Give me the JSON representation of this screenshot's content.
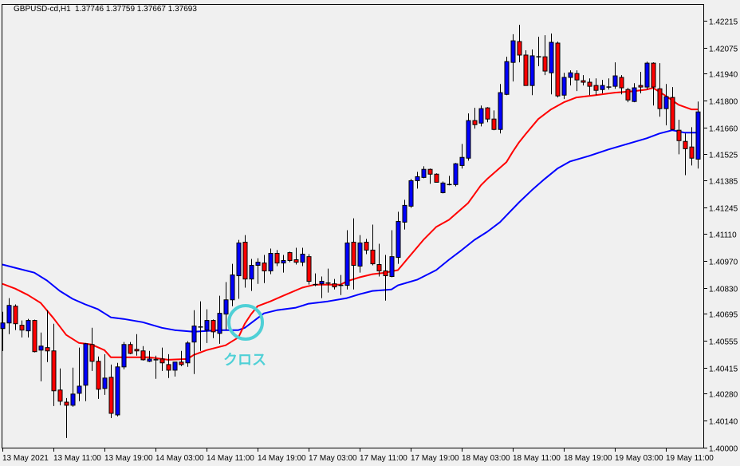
{
  "header": {
    "symbol": "GBPUSD-cd,H1",
    "quote": "1.37746 1.37759 1.37667 1.37693"
  },
  "colors": {
    "background": "#f0f0f0",
    "bull": "#0000ff",
    "bear": "#ff0000",
    "ma_fast": "#ff0000",
    "ma_slow": "#0000ff",
    "annotation": "#4fd0d6",
    "outline": "#000000"
  },
  "annotation": {
    "text": "クロス",
    "icon": "circle-highlight"
  },
  "chart_data": {
    "type": "candlestick",
    "title": "GBPUSD-cd,H1",
    "ylim": [
      1.4,
      1.42215
    ],
    "y_ticks": [
      "1.42215",
      "1.42075",
      "1.41940",
      "1.41800",
      "1.41660",
      "1.41525",
      "1.41385",
      "1.41245",
      "1.41110",
      "1.40970",
      "1.40830",
      "1.40695",
      "1.40555",
      "1.40415",
      "1.40280",
      "1.40140",
      "1.40000"
    ],
    "x_labels": [
      {
        "bar": 0,
        "text": "13 May 2021"
      },
      {
        "bar": 8,
        "text": "13 May 11:00"
      },
      {
        "bar": 16,
        "text": "13 May 19:00"
      },
      {
        "bar": 24,
        "text": "14 May 03:00"
      },
      {
        "bar": 32,
        "text": "14 May 11:00"
      },
      {
        "bar": 40,
        "text": "14 May 19:00"
      },
      {
        "bar": 48,
        "text": "17 May 03:00"
      },
      {
        "bar": 56,
        "text": "17 May 11:00"
      },
      {
        "bar": 64,
        "text": "17 May 19:00"
      },
      {
        "bar": 72,
        "text": "18 May 03:00"
      },
      {
        "bar": 80,
        "text": "18 May 11:00"
      },
      {
        "bar": 88,
        "text": "18 May 19:00"
      },
      {
        "bar": 96,
        "text": "19 May 03:00"
      },
      {
        "bar": 104,
        "text": "19 May 11:00"
      }
    ],
    "candles_ohlc": [
      [
        1.40618,
        1.40705,
        1.40502,
        1.40647
      ],
      [
        1.40647,
        1.40776,
        1.40589,
        1.40738
      ],
      [
        1.40734,
        1.40743,
        1.4061,
        1.40643
      ],
      [
        1.40635,
        1.4066,
        1.40572,
        1.4061
      ],
      [
        1.40606,
        1.40668,
        1.40572,
        1.4066
      ],
      [
        1.4066,
        1.40664,
        1.40494,
        1.40498
      ],
      [
        1.40506,
        1.40597,
        1.40344,
        1.40527
      ],
      [
        1.40519,
        1.40713,
        1.40444,
        1.40502
      ],
      [
        1.40502,
        1.40643,
        1.40216,
        1.40295
      ],
      [
        1.40299,
        1.40411,
        1.4022,
        1.40241
      ],
      [
        1.40236,
        1.40257,
        1.4005,
        1.4022
      ],
      [
        1.4022,
        1.40415,
        1.40212,
        1.40278
      ],
      [
        1.40282,
        1.40519,
        1.40241,
        1.40319
      ],
      [
        1.40324,
        1.40543,
        1.40241,
        1.40539
      ],
      [
        1.40535,
        1.40622,
        1.40398,
        1.40448
      ],
      [
        1.40448,
        1.40473,
        1.40253,
        1.40303
      ],
      [
        1.40307,
        1.40485,
        1.40274,
        1.40361
      ],
      [
        1.40365,
        1.40431,
        1.40153,
        1.40178
      ],
      [
        1.4017,
        1.4044,
        1.40162,
        1.40419
      ],
      [
        1.40419,
        1.40548,
        1.40407,
        1.40535
      ],
      [
        1.40535,
        1.40548,
        1.40485,
        1.40489
      ],
      [
        1.4051,
        1.40589,
        1.40477,
        1.40502
      ],
      [
        1.40502,
        1.40527,
        1.40452,
        1.40456
      ],
      [
        1.40448,
        1.40502,
        1.40444,
        1.4046
      ],
      [
        1.40456,
        1.40477,
        1.40357,
        1.40456
      ],
      [
        1.4046,
        1.40519,
        1.40398,
        1.4044
      ],
      [
        1.40431,
        1.40485,
        1.40361,
        1.40402
      ],
      [
        1.40402,
        1.40444,
        1.40369,
        1.40444
      ],
      [
        1.40444,
        1.40502,
        1.40423,
        1.40431
      ],
      [
        1.4044,
        1.40552,
        1.40419,
        1.40543
      ],
      [
        1.40548,
        1.40713,
        1.40382,
        1.40631
      ],
      [
        1.40626,
        1.40759,
        1.40502,
        1.40626
      ],
      [
        1.4061,
        1.40718,
        1.40543,
        1.4066
      ],
      [
        1.4066,
        1.40665,
        1.40568,
        1.40601
      ],
      [
        1.40593,
        1.40788,
        1.40539,
        1.40697
      ],
      [
        1.40693,
        1.40859,
        1.4061,
        1.40767
      ],
      [
        1.40767,
        1.40954,
        1.40734,
        1.40896
      ],
      [
        1.40892,
        1.41078,
        1.40772,
        1.41062
      ],
      [
        1.41066,
        1.41103,
        1.4083,
        1.40875
      ],
      [
        1.40875,
        1.40979,
        1.40813,
        1.40946
      ],
      [
        1.40946,
        1.40983,
        1.4085,
        1.40962
      ],
      [
        1.40958,
        1.41,
        1.40854,
        1.40917
      ],
      [
        1.40917,
        1.41033,
        1.409,
        1.41008
      ],
      [
        1.41008,
        1.41025,
        1.40942,
        1.40958
      ],
      [
        1.40958,
        1.41,
        1.40908,
        1.40971
      ],
      [
        1.41012,
        1.41017,
        1.40962,
        1.40971
      ],
      [
        1.40975,
        1.41037,
        1.4095,
        1.40962
      ],
      [
        1.40962,
        1.41037,
        1.40942,
        1.41004
      ],
      [
        1.40991,
        1.41004,
        1.40846,
        1.40863
      ],
      [
        1.40846,
        1.40904,
        1.40838,
        1.40846
      ],
      [
        1.4085,
        1.40888,
        1.40776,
        1.40863
      ],
      [
        1.40854,
        1.40929,
        1.40805,
        1.40854
      ],
      [
        1.4085,
        1.40875,
        1.40821,
        1.40834
      ],
      [
        1.40842,
        1.40896,
        1.40792,
        1.40838
      ],
      [
        1.40842,
        1.41128,
        1.40821,
        1.41062
      ],
      [
        1.41066,
        1.4119,
        1.40821,
        1.40946
      ],
      [
        1.40942,
        1.41103,
        1.40908,
        1.41062
      ],
      [
        1.41066,
        1.41083,
        1.41004,
        1.41025
      ],
      [
        1.41025,
        1.41157,
        1.40946,
        1.40954
      ],
      [
        1.4095,
        1.41058,
        1.40888,
        1.40917
      ],
      [
        1.40917,
        1.41,
        1.40763,
        1.40892
      ],
      [
        1.40888,
        1.41128,
        1.40884,
        1.40991
      ],
      [
        1.40987,
        1.41224,
        1.40954,
        1.41174
      ],
      [
        1.4117,
        1.41286,
        1.41132,
        1.41257
      ],
      [
        1.41253,
        1.41394,
        1.41244,
        1.41385
      ],
      [
        1.41385,
        1.41431,
        1.41344,
        1.41406
      ],
      [
        1.41402,
        1.4146,
        1.41398,
        1.41444
      ],
      [
        1.41444,
        1.41448,
        1.41369,
        1.41419
      ],
      [
        1.41419,
        1.41423,
        1.41377,
        1.41377
      ],
      [
        1.41323,
        1.41381,
        1.41319,
        1.41373
      ],
      [
        1.41365,
        1.4141,
        1.41361,
        1.41365
      ],
      [
        1.41365,
        1.41477,
        1.41356,
        1.41473
      ],
      [
        1.41464,
        1.41576,
        1.41448,
        1.41506
      ],
      [
        1.41502,
        1.41734,
        1.41489,
        1.41697
      ],
      [
        1.41697,
        1.41763,
        1.41655,
        1.41676
      ],
      [
        1.41684,
        1.41775,
        1.41667,
        1.41759
      ],
      [
        1.41763,
        1.41767,
        1.41688,
        1.41705
      ],
      [
        1.41705,
        1.4175,
        1.41647,
        1.41651
      ],
      [
        1.41651,
        1.41887,
        1.4163,
        1.41842
      ],
      [
        1.41833,
        1.42028,
        1.41829,
        1.42003
      ],
      [
        1.41999,
        1.42145,
        1.419,
        1.42111
      ],
      [
        1.42107,
        1.42194,
        1.41999,
        1.42037
      ],
      [
        1.42037,
        1.42062,
        1.41879,
        1.41879
      ],
      [
        1.41879,
        1.42066,
        1.41829,
        1.42033
      ],
      [
        1.42028,
        1.42132,
        1.41979,
        1.42028
      ],
      [
        1.42028,
        1.4214,
        1.41933,
        1.41954
      ],
      [
        1.41945,
        1.42149,
        1.41833,
        1.42103
      ],
      [
        1.42099,
        1.42107,
        1.41817,
        1.41825
      ],
      [
        1.41829,
        1.41945,
        1.41809,
        1.41921
      ],
      [
        1.41921,
        1.41958,
        1.41879,
        1.41945
      ],
      [
        1.41941,
        1.41958,
        1.4185,
        1.41908
      ],
      [
        1.41904,
        1.41933,
        1.41879,
        1.41896
      ],
      [
        1.41896,
        1.41916,
        1.41829,
        1.41875
      ],
      [
        1.41879,
        1.41916,
        1.41829,
        1.41854
      ],
      [
        1.41858,
        1.41908,
        1.41838,
        1.41879
      ],
      [
        1.41871,
        1.41916,
        1.41858,
        1.41871
      ],
      [
        1.41875,
        1.41999,
        1.41862,
        1.41929
      ],
      [
        1.41921,
        1.41933,
        1.41833,
        1.41867
      ],
      [
        1.41858,
        1.41867,
        1.41792,
        1.41804
      ],
      [
        1.41796,
        1.41891,
        1.41792,
        1.41867
      ],
      [
        1.41879,
        1.4195,
        1.41838,
        1.41871
      ],
      [
        1.41871,
        1.42003,
        1.41858,
        1.41995
      ],
      [
        1.41995,
        1.41999,
        1.41775,
        1.41871
      ],
      [
        1.41862,
        1.41995,
        1.41717,
        1.41759
      ],
      [
        1.41759,
        1.41887,
        1.41672,
        1.41821
      ],
      [
        1.41817,
        1.41871,
        1.41651,
        1.41651
      ],
      [
        1.41647,
        1.41701,
        1.41522,
        1.41593
      ],
      [
        1.41589,
        1.4163,
        1.41414,
        1.41551
      ],
      [
        1.4156,
        1.41663,
        1.41464,
        1.41502
      ],
      [
        1.41497,
        1.41796,
        1.41448,
        1.41742
      ]
    ],
    "ma_fast": [
      [
        0,
        1.4085
      ],
      [
        2,
        1.40825
      ],
      [
        4,
        1.40792
      ],
      [
        6,
        1.40751
      ],
      [
        8,
        1.40672
      ],
      [
        10,
        1.40585
      ],
      [
        12,
        1.40543
      ],
      [
        14,
        1.40535
      ],
      [
        16,
        1.40506
      ],
      [
        17,
        1.40469
      ],
      [
        19,
        1.40469
      ],
      [
        23,
        1.40469
      ],
      [
        26,
        1.40456
      ],
      [
        29,
        1.4046
      ],
      [
        30,
        1.40481
      ],
      [
        32,
        1.40506
      ],
      [
        35,
        1.40531
      ],
      [
        37,
        1.40572
      ],
      [
        38,
        1.40643
      ],
      [
        39,
        1.40693
      ],
      [
        40,
        1.40734
      ],
      [
        42,
        1.40759
      ],
      [
        44,
        1.40788
      ],
      [
        47,
        1.4083
      ],
      [
        49,
        1.40846
      ],
      [
        53,
        1.40846
      ],
      [
        54,
        1.40863
      ],
      [
        56,
        1.40884
      ],
      [
        58,
        1.409
      ],
      [
        60,
        1.40908
      ],
      [
        62,
        1.40921
      ],
      [
        66,
        1.41078
      ],
      [
        68,
        1.41145
      ],
      [
        70,
        1.41182
      ],
      [
        71,
        1.41211
      ],
      [
        73,
        1.41269
      ],
      [
        74,
        1.41315
      ],
      [
        75,
        1.41361
      ],
      [
        76,
        1.41394
      ],
      [
        77,
        1.41423
      ],
      [
        79,
        1.41481
      ],
      [
        80,
        1.41535
      ],
      [
        81,
        1.41585
      ],
      [
        82,
        1.41626
      ],
      [
        84,
        1.41705
      ],
      [
        86,
        1.41755
      ],
      [
        88,
        1.41792
      ],
      [
        90,
        1.41817
      ],
      [
        93,
        1.41829
      ],
      [
        96,
        1.41842
      ],
      [
        99,
        1.4185
      ],
      [
        101,
        1.41858
      ],
      [
        102,
        1.41867
      ],
      [
        104,
        1.41825
      ],
      [
        106,
        1.41779
      ],
      [
        108,
        1.41755
      ],
      [
        109,
        1.41755
      ]
    ],
    "ma_slow": [
      [
        0,
        1.4095
      ],
      [
        2,
        1.40933
      ],
      [
        5,
        1.40908
      ],
      [
        7,
        1.40867
      ],
      [
        9,
        1.40813
      ],
      [
        11,
        1.40772
      ],
      [
        13,
        1.40743
      ],
      [
        15,
        1.40718
      ],
      [
        17,
        1.40676
      ],
      [
        19,
        1.40668
      ],
      [
        22,
        1.40651
      ],
      [
        25,
        1.40622
      ],
      [
        27,
        1.4061
      ],
      [
        30,
        1.40601
      ],
      [
        34,
        1.4061
      ],
      [
        37,
        1.4061
      ],
      [
        38,
        1.40622
      ],
      [
        41,
        1.40697
      ],
      [
        43,
        1.40713
      ],
      [
        46,
        1.40726
      ],
      [
        48,
        1.40747
      ],
      [
        51,
        1.40759
      ],
      [
        54,
        1.40776
      ],
      [
        56,
        1.40796
      ],
      [
        58,
        1.40813
      ],
      [
        61,
        1.40821
      ],
      [
        62,
        1.40842
      ],
      [
        65,
        1.40871
      ],
      [
        68,
        1.40921
      ],
      [
        70,
        1.40975
      ],
      [
        72,
        1.41025
      ],
      [
        74,
        1.41078
      ],
      [
        76,
        1.4112
      ],
      [
        78,
        1.4117
      ],
      [
        81,
        1.41273
      ],
      [
        83,
        1.41336
      ],
      [
        85,
        1.41394
      ],
      [
        87,
        1.41448
      ],
      [
        89,
        1.41485
      ],
      [
        92,
        1.41514
      ],
      [
        95,
        1.41547
      ],
      [
        98,
        1.41576
      ],
      [
        101,
        1.41605
      ],
      [
        103,
        1.4163
      ],
      [
        105,
        1.41647
      ],
      [
        107,
        1.41634
      ],
      [
        109,
        1.41634
      ]
    ]
  }
}
